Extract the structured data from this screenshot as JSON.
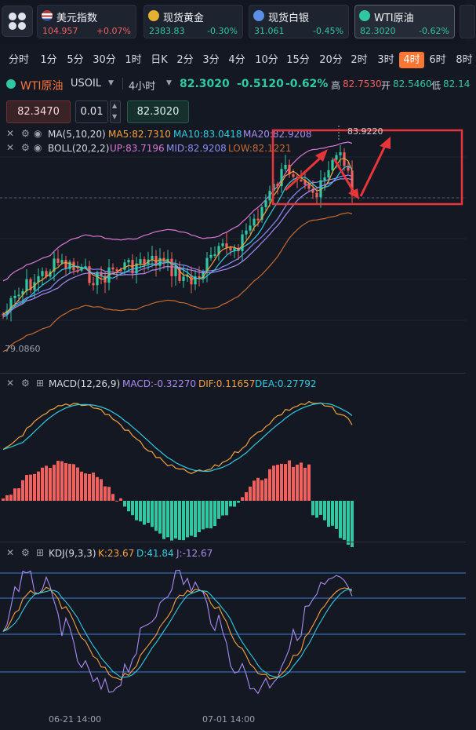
{
  "quotes": [
    {
      "name": "美元指数",
      "price": "104.957",
      "change": "+0.07%",
      "icon": "us-flag-icon",
      "color": "#f0605c",
      "dir": "up"
    },
    {
      "name": "现货黄金",
      "price": "2383.83",
      "change": "-0.30%",
      "icon": "gold-icon",
      "color": "#e5b230",
      "dir": "down"
    },
    {
      "name": "现货白银",
      "price": "31.061",
      "change": "-0.45%",
      "icon": "silver-icon",
      "color": "#5a8fe6",
      "dir": "down"
    },
    {
      "name": "WTI原油",
      "price": "82.3020",
      "change": "-0.62%",
      "icon": "oil-icon",
      "color": "#2ec8a3",
      "dir": "down"
    }
  ],
  "timeframes": [
    "分时",
    "1分",
    "5分",
    "30分",
    "1时",
    "日K",
    "2分",
    "3分",
    "4分",
    "10分",
    "15分",
    "20分",
    "2时",
    "3时",
    "4时",
    "6时",
    "8时"
  ],
  "active_timeframe": "4时",
  "symbol": {
    "name": "WTI原油",
    "code": "USOIL",
    "period": "4小时",
    "price": "82.3020",
    "change": "-0.5120",
    "change_pct": "-0.62%",
    "high_label": "高",
    "high": "82.7530",
    "open_label": "开",
    "open": "82.5460",
    "low_label": "低",
    "low": "82.14"
  },
  "order": {
    "sell_price": "82.3470",
    "lot": "0.01",
    "buy_price": "82.3020"
  },
  "ma_legend": {
    "name": "MA(5,10,20)",
    "ma5": "MA5:82.7310",
    "ma10": "MA10:83.0418",
    "ma20": "MA20:82.9208"
  },
  "boll_legend": {
    "name": "BOLL(20,2,2)",
    "up": "UP:83.7196",
    "mid": "MID:82.9208",
    "low": "LOW:82.1221"
  },
  "macd_legend": {
    "name": "MACD(12,26,9)",
    "macd": "MACD:-0.32270",
    "dif": "DIF:0.11657",
    "dea": "DEA:0.27792"
  },
  "kdj_legend": {
    "name": "KDJ(9,3,3)",
    "k": "K:23.67",
    "d": "D:41.84",
    "j": "J:-12.67"
  },
  "price_marks": {
    "high": "83.9220",
    "low": "79.0860"
  },
  "x_labels": [
    "06-21 14:00",
    "07-01 14:00"
  ],
  "colors": {
    "up": "#f0605c",
    "down": "#2ec8a3",
    "accent": "#ff7534",
    "ma5": "#f5a33c",
    "ma10": "#2ecce0",
    "ma20": "#a98cf2",
    "boll_up": "#d779d3",
    "boll_mid": "#8c8cf5",
    "boll_low": "#c46a32",
    "annotation": "#e8353a"
  }
}
